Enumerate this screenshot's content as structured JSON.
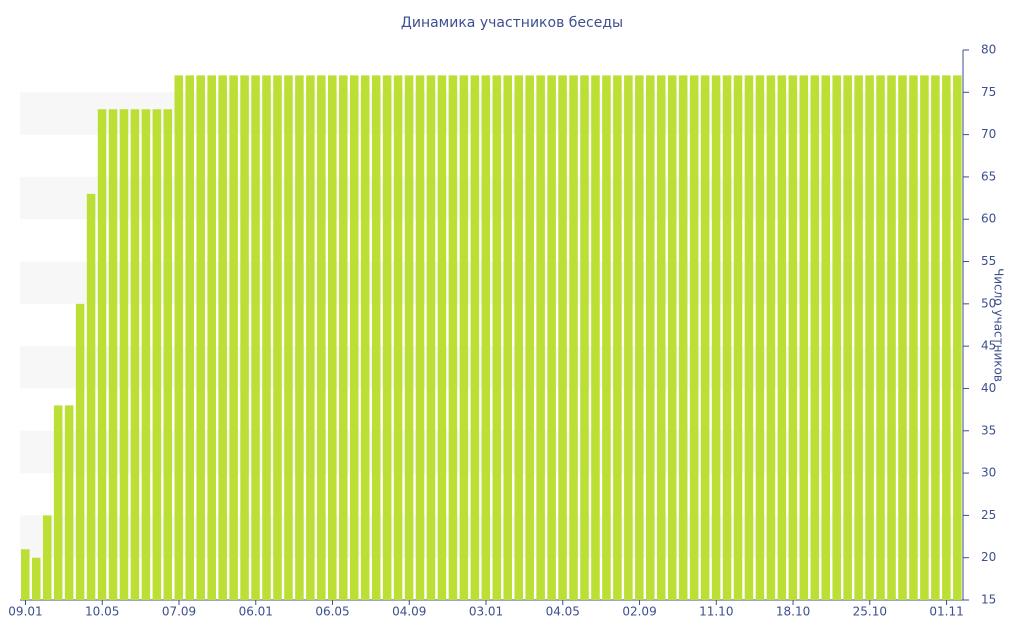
{
  "chart_data": {
    "type": "bar",
    "title": "Динамика участников беседы",
    "y_label": "Число участников",
    "y_axis_side": "right",
    "grid": "bands",
    "color": "#bcdf35",
    "categories": [
      "09.01",
      null,
      null,
      null,
      null,
      null,
      null,
      "10.05",
      null,
      null,
      null,
      null,
      null,
      null,
      "07.09",
      null,
      null,
      null,
      null,
      null,
      null,
      "06.01",
      null,
      null,
      null,
      null,
      null,
      null,
      "06.05",
      null,
      null,
      null,
      null,
      null,
      null,
      "04.09",
      null,
      null,
      null,
      null,
      null,
      null,
      "03.01",
      null,
      null,
      null,
      null,
      null,
      null,
      "04.05",
      null,
      null,
      null,
      null,
      null,
      null,
      "02.09",
      null,
      null,
      null,
      null,
      null,
      null,
      "11.10",
      null,
      null,
      null,
      null,
      null,
      null,
      "18.10",
      null,
      null,
      null,
      null,
      null,
      null,
      "25.10",
      null,
      null,
      null,
      null,
      null,
      null,
      "01.11",
      null
    ],
    "values": [
      21,
      20,
      25,
      38,
      38,
      50,
      63,
      73,
      73,
      73,
      73,
      73,
      73,
      73,
      77,
      77,
      77,
      77,
      77,
      77,
      77,
      77,
      77,
      77,
      77,
      77,
      77,
      77,
      77,
      77,
      77,
      77,
      77,
      77,
      77,
      77,
      77,
      77,
      77,
      77,
      77,
      77,
      77,
      77,
      77,
      77,
      77,
      77,
      77,
      77,
      77,
      77,
      77,
      77,
      77,
      77,
      77,
      77,
      77,
      77,
      77,
      77,
      77,
      77,
      77,
      77,
      77,
      77,
      77,
      77,
      77,
      77,
      77,
      77,
      77,
      77,
      77,
      77,
      77,
      77,
      77,
      77,
      77,
      77,
      77,
      77
    ],
    "ylim": [
      15,
      80
    ],
    "yticks": [
      15,
      20,
      25,
      30,
      35,
      40,
      45,
      50,
      55,
      60,
      65,
      70,
      75,
      80
    ]
  }
}
